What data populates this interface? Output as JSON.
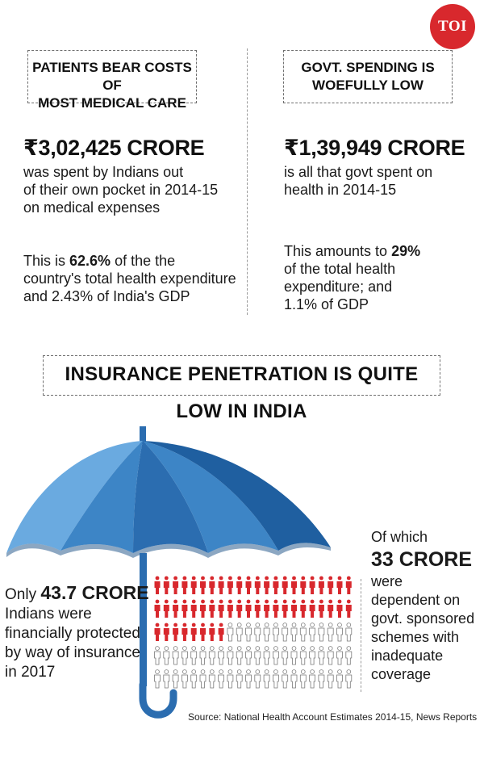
{
  "logo": {
    "text": "TOI",
    "color": "#d8282d"
  },
  "left_panel": {
    "heading": [
      "PATIENTS BEAR COSTS OF",
      "MOST MEDICAL CARE"
    ],
    "amount": "₹3,02,425 CRORE",
    "description": [
      "was spent by Indians out",
      "of their own pocket in 2014-15",
      "on medical  expenses"
    ],
    "stat_prefix": "This is ",
    "stat_value": "62.6%",
    "stat_suffix_lines": [
      " of the the",
      "country's total health expenditure",
      "and 2.43% of India's  GDP"
    ]
  },
  "right_panel": {
    "heading": [
      "GOVT. SPENDING IS",
      "WOEFULLY LOW"
    ],
    "amount": "₹1,39,949 CRORE",
    "description": [
      "is all that govt spent on",
      "health in 2014-15"
    ],
    "stat_prefix": "This amounts to  ",
    "stat_value": "29%",
    "stat_suffix_lines": [
      "of the total health",
      "expenditure; and",
      "1.1% of GDP"
    ]
  },
  "insurance": {
    "heading": "INSURANCE PENETRATION IS QUITE LOW IN INDIA",
    "only_prefix": "Only ",
    "only_value": "43.7 CRORE",
    "only_lines": [
      "Indians were",
      "financially protected",
      "by way of insurance",
      "in 2017"
    ],
    "of_which": "Of which",
    "of_which_value": "33 CRORE",
    "of_which_lines": [
      "were",
      "dependent on",
      "govt. sponsored",
      "schemes with",
      "inadequate",
      "coverage"
    ],
    "people_grid": {
      "rows": 5,
      "cols": 22,
      "red_count": 52,
      "red_color": "#d8282d",
      "outline_color": "#7a7a7a"
    },
    "umbrella_colors": [
      "#1f5fa0",
      "#3d85c6",
      "#6aaae0",
      "#2b6db0"
    ]
  },
  "source": "Source: National Health Account Estimates 2014-15,  News Reports"
}
